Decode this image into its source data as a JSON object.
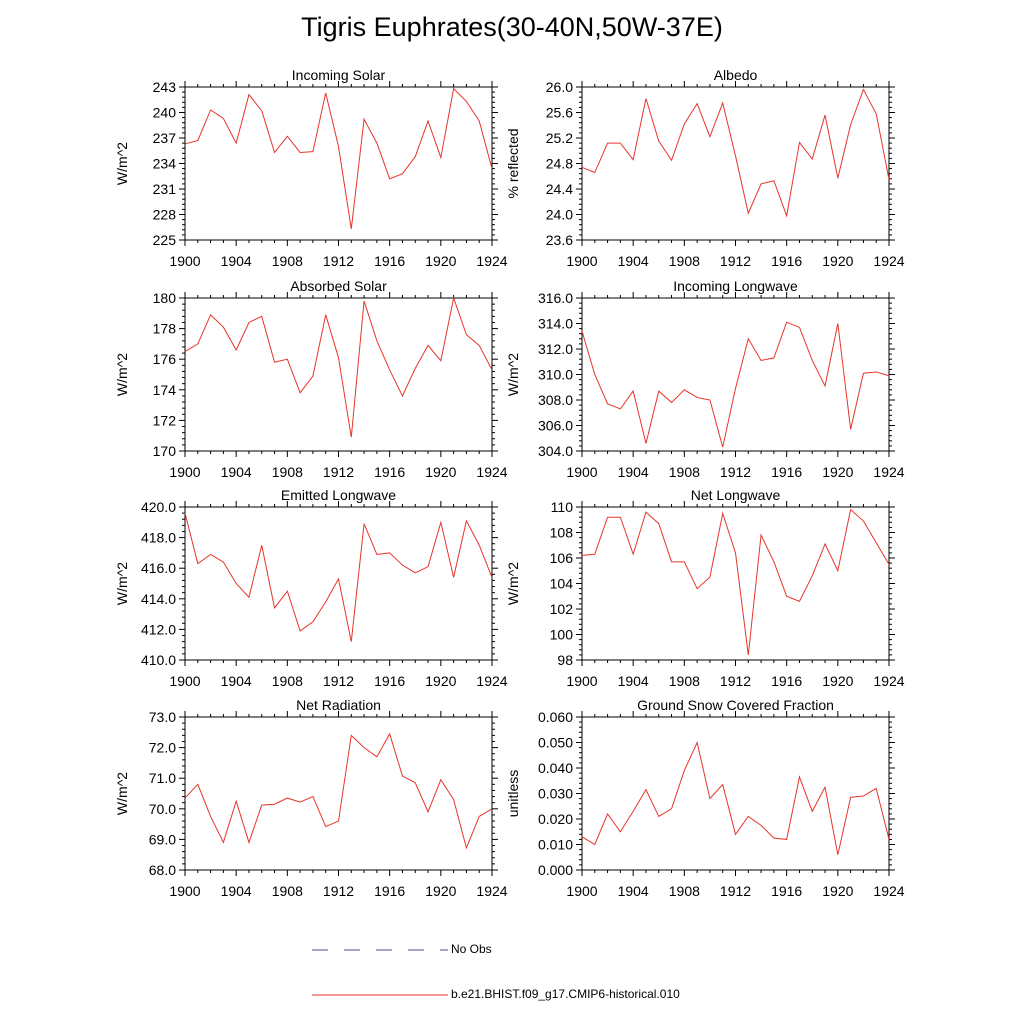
{
  "figure": {
    "title": "Tigris Euphrates(30-40N,50W-37E)"
  },
  "legend": [
    {
      "label": "No Obs",
      "color": "#4a4aa6",
      "dash": "dashed"
    },
    {
      "label": "b.e21.BHIST.f09_g17.CMIP6-historical.010",
      "color": "#e8342a",
      "dash": "solid"
    }
  ],
  "chart_data": [
    {
      "type": "line",
      "title": "Incoming Solar",
      "ylabel": "W/m^2",
      "x": [
        1900,
        1901,
        1902,
        1903,
        1904,
        1905,
        1906,
        1907,
        1908,
        1909,
        1910,
        1911,
        1912,
        1913,
        1914,
        1915,
        1916,
        1917,
        1918,
        1919,
        1920,
        1921,
        1922,
        1923,
        1924
      ],
      "xticks": [
        "1900",
        "1904",
        "1908",
        "1912",
        "1916",
        "1920",
        "1924"
      ],
      "ylim": [
        225,
        243
      ],
      "yticks": [
        "225",
        "228",
        "231",
        "234",
        "237",
        "240",
        "243"
      ],
      "series": [
        {
          "color": "#e8342a",
          "values": [
            236.3,
            236.7,
            240.3,
            239.3,
            236.4,
            242.1,
            240.2,
            235.3,
            237.2,
            235.3,
            235.4,
            242.3,
            236.0,
            226.3,
            239.2,
            236.4,
            232.2,
            232.8,
            234.8,
            239.0,
            234.7,
            242.8,
            241.3,
            239.0,
            233.4
          ]
        }
      ]
    },
    {
      "type": "line",
      "title": "Albedo",
      "ylabel": "% reflected",
      "x": [
        1900,
        1901,
        1902,
        1903,
        1904,
        1905,
        1906,
        1907,
        1908,
        1909,
        1910,
        1911,
        1912,
        1913,
        1914,
        1915,
        1916,
        1917,
        1918,
        1919,
        1920,
        1921,
        1922,
        1923,
        1924
      ],
      "xticks": [
        "1900",
        "1904",
        "1908",
        "1912",
        "1916",
        "1920",
        "1924"
      ],
      "ylim": [
        23.6,
        26.0
      ],
      "yticks": [
        "23.6",
        "24.0",
        "24.4",
        "24.8",
        "25.2",
        "25.6",
        "26.0"
      ],
      "series": [
        {
          "color": "#e8342a",
          "values": [
            24.74,
            24.66,
            25.12,
            25.12,
            24.86,
            25.82,
            25.15,
            24.85,
            25.42,
            25.74,
            25.22,
            25.75,
            24.92,
            24.02,
            24.48,
            24.53,
            23.98,
            25.13,
            24.87,
            25.56,
            24.57,
            25.41,
            25.96,
            25.58,
            24.55
          ]
        }
      ]
    },
    {
      "type": "line",
      "title": "Absorbed Solar",
      "ylabel": "W/m^2",
      "x": [
        1900,
        1901,
        1902,
        1903,
        1904,
        1905,
        1906,
        1907,
        1908,
        1909,
        1910,
        1911,
        1912,
        1913,
        1914,
        1915,
        1916,
        1917,
        1918,
        1919,
        1920,
        1921,
        1922,
        1923,
        1924
      ],
      "xticks": [
        "1900",
        "1904",
        "1908",
        "1912",
        "1916",
        "1920",
        "1924"
      ],
      "ylim": [
        170,
        180
      ],
      "yticks": [
        "170",
        "172",
        "174",
        "176",
        "178",
        "180"
      ],
      "series": [
        {
          "color": "#e8342a",
          "values": [
            176.5,
            177.0,
            178.9,
            178.1,
            176.6,
            178.4,
            178.8,
            175.8,
            176.0,
            173.8,
            174.9,
            178.9,
            176.1,
            170.9,
            179.8,
            177.2,
            175.3,
            173.6,
            175.4,
            176.9,
            175.9,
            180.0,
            177.6,
            176.9,
            175.3
          ]
        }
      ]
    },
    {
      "type": "line",
      "title": "Incoming Longwave",
      "ylabel": "W/m^2",
      "x": [
        1900,
        1901,
        1902,
        1903,
        1904,
        1905,
        1906,
        1907,
        1908,
        1909,
        1910,
        1911,
        1912,
        1913,
        1914,
        1915,
        1916,
        1917,
        1918,
        1919,
        1920,
        1921,
        1922,
        1923,
        1924
      ],
      "xticks": [
        "1900",
        "1904",
        "1908",
        "1912",
        "1916",
        "1920",
        "1924"
      ],
      "ylim": [
        304,
        316
      ],
      "yticks": [
        "304.0",
        "306.0",
        "308.0",
        "310.0",
        "312.0",
        "314.0",
        "316.0"
      ],
      "series": [
        {
          "color": "#e8342a",
          "values": [
            313.4,
            310.0,
            307.7,
            307.3,
            308.7,
            304.6,
            308.7,
            307.8,
            308.8,
            308.2,
            308.0,
            304.3,
            308.9,
            312.8,
            311.1,
            311.3,
            314.1,
            313.7,
            311.1,
            309.1,
            314.0,
            305.7,
            310.1,
            310.2,
            309.9
          ]
        }
      ]
    },
    {
      "type": "line",
      "title": "Emitted Longwave",
      "ylabel": "W/m^2",
      "x": [
        1900,
        1901,
        1902,
        1903,
        1904,
        1905,
        1906,
        1907,
        1908,
        1909,
        1910,
        1911,
        1912,
        1913,
        1914,
        1915,
        1916,
        1917,
        1918,
        1919,
        1920,
        1921,
        1922,
        1923,
        1924
      ],
      "xticks": [
        "1900",
        "1904",
        "1908",
        "1912",
        "1916",
        "1920",
        "1924"
      ],
      "ylim": [
        410,
        420
      ],
      "yticks": [
        "410.0",
        "412.0",
        "414.0",
        "416.0",
        "418.0",
        "420.0"
      ],
      "series": [
        {
          "color": "#e8342a",
          "values": [
            419.6,
            416.3,
            416.9,
            416.4,
            415.0,
            414.1,
            417.5,
            413.4,
            414.5,
            411.9,
            412.5,
            413.8,
            415.3,
            411.2,
            418.9,
            416.9,
            417.0,
            416.2,
            415.7,
            416.1,
            419.0,
            415.4,
            419.1,
            417.5,
            415.4
          ]
        }
      ]
    },
    {
      "type": "line",
      "title": "Net Longwave",
      "ylabel": "W/m^2",
      "x": [
        1900,
        1901,
        1902,
        1903,
        1904,
        1905,
        1906,
        1907,
        1908,
        1909,
        1910,
        1911,
        1912,
        1913,
        1914,
        1915,
        1916,
        1917,
        1918,
        1919,
        1920,
        1921,
        1922,
        1923,
        1924
      ],
      "xticks": [
        "1900",
        "1904",
        "1908",
        "1912",
        "1916",
        "1920",
        "1924"
      ],
      "ylim": [
        98,
        110
      ],
      "yticks": [
        "98",
        "100",
        "102",
        "104",
        "106",
        "108",
        "110"
      ],
      "series": [
        {
          "color": "#e8342a",
          "values": [
            106.2,
            106.3,
            109.2,
            109.2,
            106.3,
            109.6,
            108.7,
            105.7,
            105.7,
            103.6,
            104.5,
            109.5,
            106.4,
            98.4,
            107.8,
            105.7,
            103.0,
            102.6,
            104.6,
            107.1,
            105.0,
            109.8,
            108.9,
            107.2,
            105.5
          ]
        }
      ]
    },
    {
      "type": "line",
      "title": "Net Radiation",
      "ylabel": "W/m^2",
      "x": [
        1900,
        1901,
        1902,
        1903,
        1904,
        1905,
        1906,
        1907,
        1908,
        1909,
        1910,
        1911,
        1912,
        1913,
        1914,
        1915,
        1916,
        1917,
        1918,
        1919,
        1920,
        1921,
        1922,
        1923,
        1924
      ],
      "xticks": [
        "1900",
        "1904",
        "1908",
        "1912",
        "1916",
        "1920",
        "1924"
      ],
      "ylim": [
        68,
        73
      ],
      "yticks": [
        "68.0",
        "69.0",
        "70.0",
        "71.0",
        "72.0",
        "73.0"
      ],
      "series": [
        {
          "color": "#e8342a",
          "values": [
            70.35,
            70.8,
            69.75,
            68.9,
            70.25,
            68.9,
            70.12,
            70.15,
            70.35,
            70.22,
            70.4,
            69.42,
            69.6,
            72.4,
            72.0,
            71.7,
            72.45,
            71.07,
            70.85,
            69.9,
            70.95,
            70.3,
            68.72,
            69.75,
            70.0
          ]
        }
      ]
    },
    {
      "type": "line",
      "title": "Ground Snow Covered Fraction",
      "ylabel": "unitless",
      "x": [
        1900,
        1901,
        1902,
        1903,
        1904,
        1905,
        1906,
        1907,
        1908,
        1909,
        1910,
        1911,
        1912,
        1913,
        1914,
        1915,
        1916,
        1917,
        1918,
        1919,
        1920,
        1921,
        1922,
        1923,
        1924
      ],
      "xticks": [
        "1900",
        "1904",
        "1908",
        "1912",
        "1916",
        "1920",
        "1924"
      ],
      "ylim": [
        0,
        0.06
      ],
      "yticks": [
        "0.000",
        "0.010",
        "0.020",
        "0.030",
        "0.040",
        "0.050",
        "0.060"
      ],
      "series": [
        {
          "color": "#e8342a",
          "values": [
            0.013,
            0.01,
            0.022,
            0.015,
            0.023,
            0.0315,
            0.021,
            0.024,
            0.039,
            0.05,
            0.028,
            0.0335,
            0.014,
            0.021,
            0.0175,
            0.0125,
            0.012,
            0.0365,
            0.023,
            0.0325,
            0.006,
            0.0285,
            0.029,
            0.032,
            0.012
          ]
        }
      ]
    }
  ]
}
